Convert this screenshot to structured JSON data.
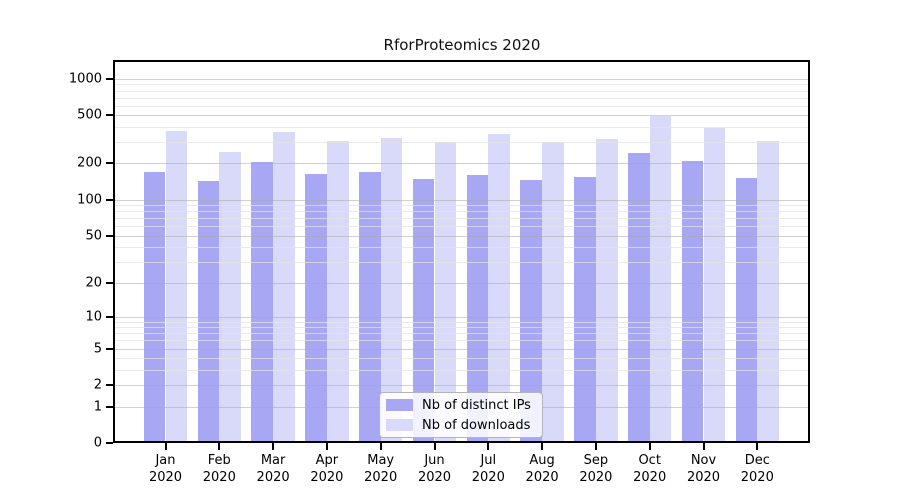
{
  "chart_data": {
    "type": "bar",
    "title": "RforProteomics 2020",
    "months": [
      "Jan",
      "Feb",
      "Mar",
      "Apr",
      "May",
      "Jun",
      "Jul",
      "Aug",
      "Sep",
      "Oct",
      "Nov",
      "Dec"
    ],
    "year_label": "2020",
    "series": [
      {
        "name": "Nb of distinct IPs",
        "color": "#a7a7f4",
        "values": [
          170,
          144,
          206,
          162,
          170,
          150,
          161,
          146,
          154,
          242,
          209,
          152
        ]
      },
      {
        "name": "Nb of downloads",
        "color": "#d9d9fa",
        "values": [
          370,
          250,
          365,
          308,
          325,
          300,
          352,
          300,
          318,
          489,
          395,
          308
        ]
      }
    ],
    "y_axis": {
      "scale": "log1p",
      "ticks": [
        0,
        1,
        2,
        5,
        10,
        20,
        50,
        100,
        200,
        500,
        1000
      ],
      "minor_gridlines": [
        3,
        4,
        6,
        7,
        8,
        9,
        30,
        40,
        60,
        70,
        80,
        90,
        300,
        400,
        600,
        700,
        800,
        900
      ],
      "ylim": [
        0,
        1430
      ]
    },
    "xlabel": "",
    "ylabel": "",
    "grid": "on",
    "legend_position": "bottom-center"
  },
  "colors": {
    "background": "#ffffff",
    "axis": "#000000",
    "grid_major": "#c9c9c9",
    "grid_minor": "#ececec"
  }
}
